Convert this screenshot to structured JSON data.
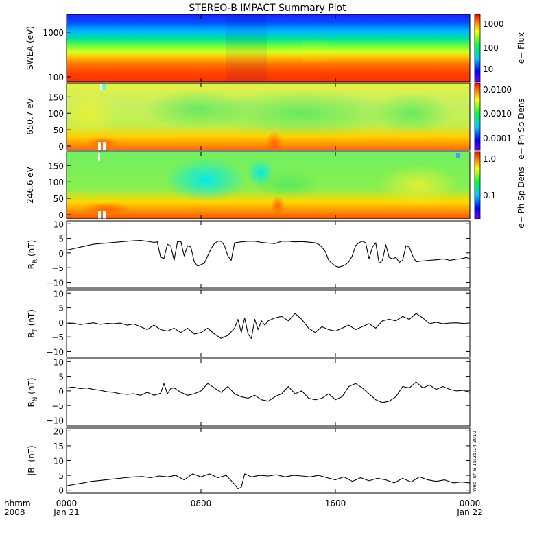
{
  "title": "STEREO-B IMPACT Summary Plot",
  "timestamp": "Wed Jun  9 15:25:14 2010",
  "chart_data": [
    {
      "type": "heatmap",
      "ylabel": "SWEA (eV)",
      "yscale": "log",
      "ylim": [
        100,
        2000
      ],
      "yticks": [
        "1000",
        "100"
      ],
      "colorbar": {
        "label": "e− Flux",
        "scale": "log",
        "ticks": [
          "1000",
          "100",
          "10"
        ],
        "colors": [
          "#7000ff",
          "#0000ff",
          "#00c8ff",
          "#00ff40",
          "#ffff00",
          "#ff8000",
          "#ff0000"
        ]
      }
    },
    {
      "type": "heatmap",
      "ylabel": "650.7 eV",
      "ylim": [
        0,
        180
      ],
      "yticks": [
        "150",
        "100",
        "50",
        "0"
      ],
      "colorbar": {
        "label": "e− Ph Sp Dens",
        "scale": "log",
        "ticks": [
          "0.0100",
          "0.0010",
          "0.0001"
        ],
        "colors": [
          "#7000ff",
          "#0000ff",
          "#00c8ff",
          "#00ff40",
          "#ffff00",
          "#ff8000",
          "#ff0000"
        ]
      }
    },
    {
      "type": "heatmap",
      "ylabel": "246.6 eV",
      "ylim": [
        0,
        180
      ],
      "yticks": [
        "150",
        "100",
        "50",
        "0"
      ],
      "colorbar": {
        "label": "e− Ph Sp Dens",
        "scale": "log",
        "ticks": [
          "1.0",
          "0.1"
        ],
        "colors": [
          "#7000ff",
          "#0000ff",
          "#00c8ff",
          "#00ff40",
          "#ffff00",
          "#ff8000",
          "#ff0000"
        ]
      }
    },
    {
      "type": "line",
      "ylabel_main": "B",
      "ylabel_sub": "R",
      "ylabel_unit": "(nT)",
      "ylim": [
        -12,
        11
      ],
      "yticks": [
        "10",
        "5",
        "0",
        "−5",
        "−10"
      ],
      "x": [
        0,
        0.4,
        0.8,
        1.2,
        1.6,
        2,
        2.4,
        2.8,
        3.2,
        3.6,
        4,
        4.4,
        4.8,
        5.2,
        5.4,
        5.6,
        5.8,
        6,
        6.2,
        6.4,
        6.6,
        6.8,
        7,
        7.2,
        7.4,
        7.6,
        7.8,
        8,
        8.2,
        8.4,
        8.6,
        8.8,
        9,
        9.2,
        9.4,
        9.6,
        9.8,
        10,
        10.4,
        10.8,
        11.2,
        11.6,
        12,
        12.4,
        12.8,
        13.2,
        13.6,
        14,
        14.4,
        14.8,
        15,
        15.2,
        15.4,
        15.6,
        15.8,
        16,
        16.2,
        16.4,
        16.6,
        16.8,
        17,
        17.2,
        17.4,
        17.6,
        17.8,
        18,
        18.2,
        18.4,
        18.6,
        18.8,
        19,
        19.2,
        19.4,
        19.6,
        19.8,
        20,
        20.2,
        20.4,
        20.6,
        20.8,
        21,
        21.2,
        21.4,
        21.6,
        21.8,
        22,
        22.2,
        22.4,
        22.6,
        22.8,
        23,
        23.2,
        23.4,
        23.6,
        23.8,
        24
      ],
      "y": [
        1,
        1.5,
        2,
        2.5,
        3,
        3.2,
        3.4,
        3.6,
        3.8,
        4,
        4.2,
        4.3,
        4,
        3.6,
        3.8,
        -1.5,
        -1.8,
        3,
        2.4,
        -2.5,
        3.8,
        4,
        -1,
        2.5,
        2,
        -3,
        -4.5,
        -4,
        -3.5,
        -1,
        1.5,
        3.2,
        4,
        4,
        2.5,
        -1,
        -2.5,
        3.5,
        3.8,
        4,
        4,
        3.6,
        3.4,
        3.2,
        4,
        4,
        3.8,
        3.9,
        3.7,
        3.5,
        3,
        2,
        0.5,
        -2.5,
        -3.5,
        -4.5,
        -4.8,
        -4.5,
        -4,
        -3,
        -1,
        2.5,
        3.5,
        4,
        3.5,
        -2,
        2,
        3.5,
        -3.5,
        -2.5,
        2.8,
        -1.5,
        -2,
        -1.5,
        -3.2,
        -2.5,
        2.5,
        2,
        -1,
        -3,
        -2.8,
        -2.7,
        -2.6,
        -2.5,
        -2.4,
        -2.3,
        -2.2,
        -2,
        -2.2,
        -2.5,
        -2.3,
        -2.1,
        -2,
        -1.8,
        -1.5,
        -2
      ]
    },
    {
      "type": "line",
      "ylabel_main": "B",
      "ylabel_sub": "T",
      "ylabel_unit": "(nT)",
      "ylim": [
        -12,
        11
      ],
      "yticks": [
        "10",
        "5",
        "0",
        "−5",
        "−10"
      ],
      "x": [
        0,
        0.4,
        0.8,
        1.2,
        1.6,
        2,
        2.4,
        2.8,
        3.2,
        3.6,
        4,
        4.4,
        4.8,
        5.2,
        5.6,
        6,
        6.4,
        6.8,
        7.2,
        7.6,
        8,
        8.4,
        8.8,
        9.2,
        9.6,
        10,
        10.2,
        10.4,
        10.6,
        10.8,
        11,
        11.2,
        11.4,
        11.6,
        11.8,
        12,
        12.4,
        12.8,
        13.2,
        13.6,
        14,
        14.4,
        14.8,
        15.2,
        15.6,
        16,
        16.4,
        16.8,
        17.2,
        17.6,
        18,
        18.4,
        18.8,
        19.2,
        19.6,
        20,
        20.4,
        20.8,
        21.2,
        21.6,
        22,
        22.4,
        22.8,
        23.2,
        23.6,
        24
      ],
      "y": [
        -0.5,
        -0.3,
        -0.8,
        -0.5,
        -0.2,
        -0.7,
        -0.4,
        -0.5,
        -0.3,
        -1,
        -0.6,
        -1.5,
        -2.5,
        -1,
        -2.5,
        -3,
        -2,
        -3.5,
        -2,
        -4,
        -3.5,
        -2,
        -4,
        -5.5,
        -4.5,
        -2,
        1,
        -3.5,
        1.5,
        -4,
        -5.5,
        1,
        -2.5,
        0.5,
        -1,
        0.5,
        1.5,
        2,
        0.5,
        3,
        1,
        -2,
        -3.5,
        -1.5,
        -2.5,
        -3,
        -2,
        -1,
        -2.5,
        -1.5,
        -0.5,
        -2,
        0.5,
        1,
        0.5,
        2,
        1,
        3,
        1.5,
        -0.5,
        0,
        -0.5,
        -0.3,
        -0.2,
        -0.4,
        -0.5
      ]
    },
    {
      "type": "line",
      "ylabel_main": "B",
      "ylabel_sub": "N",
      "ylabel_unit": "(nT)",
      "ylim": [
        -12,
        11
      ],
      "yticks": [
        "10",
        "5",
        "0",
        "−5",
        "−10"
      ],
      "x": [
        0,
        0.4,
        0.8,
        1.2,
        1.6,
        2,
        2.4,
        2.8,
        3.2,
        3.6,
        4,
        4.4,
        4.8,
        5.2,
        5.6,
        5.8,
        6,
        6.2,
        6.4,
        6.8,
        7.2,
        7.6,
        8,
        8.4,
        8.8,
        9.2,
        9.6,
        10,
        10.4,
        10.8,
        11.2,
        11.6,
        12,
        12.4,
        12.8,
        13.2,
        13.6,
        14,
        14.4,
        14.8,
        15.2,
        15.6,
        16,
        16.4,
        16.8,
        17.2,
        17.6,
        18,
        18.4,
        18.8,
        19.2,
        19.6,
        20,
        20.4,
        20.8,
        21.2,
        21.6,
        22,
        22.4,
        22.8,
        23.2,
        23.6,
        24
      ],
      "y": [
        1,
        1.3,
        0.8,
        1,
        0.5,
        0.2,
        -0.3,
        -0.5,
        -1,
        -1.2,
        -1,
        -1.5,
        -0.5,
        -1.5,
        -0.8,
        2.5,
        -1,
        0.8,
        1,
        -0.5,
        -1.5,
        -1,
        0,
        2.5,
        1,
        -0.5,
        1.5,
        -1,
        -2,
        -2.5,
        -1.5,
        -3,
        -3.5,
        -2,
        -1,
        1.5,
        -1,
        0,
        -2.5,
        -3,
        -2.5,
        -1,
        -3,
        -2,
        1.5,
        2.5,
        1,
        -1,
        -3,
        -4,
        -3.5,
        -2,
        1.5,
        1,
        3,
        1,
        2,
        0.5,
        1.5,
        0.5,
        0,
        0.2,
        -0.5
      ]
    },
    {
      "type": "line",
      "ylabel_main": "|B|",
      "ylabel_sub": "",
      "ylabel_unit": "(nT)",
      "ylim": [
        -1,
        21
      ],
      "yticks": [
        "20",
        "15",
        "10",
        "5",
        "0"
      ],
      "x": [
        0,
        0.5,
        1,
        1.5,
        2,
        2.5,
        3,
        3.5,
        4,
        4.5,
        5,
        5.5,
        6,
        6.5,
        7,
        7.5,
        8,
        8.5,
        9,
        9.5,
        10,
        10.2,
        10.4,
        10.6,
        11,
        11.5,
        12,
        12.5,
        13,
        13.5,
        14,
        14.5,
        15,
        15.5,
        16,
        16.5,
        17,
        17.5,
        18,
        18.5,
        19,
        19.5,
        20,
        20.5,
        21,
        21.5,
        22,
        22.5,
        23,
        23.5,
        24
      ],
      "y": [
        1.5,
        2,
        2.5,
        3,
        3.3,
        3.6,
        3.9,
        4.2,
        4.5,
        4.6,
        4.2,
        4.8,
        4.5,
        5,
        3.5,
        5.5,
        4.5,
        5.5,
        4.2,
        5,
        2,
        0.5,
        1,
        5.5,
        4.5,
        5,
        4.8,
        5.2,
        4.5,
        5,
        4.8,
        4.5,
        5,
        4.2,
        3.5,
        4.5,
        3,
        4.2,
        3.2,
        4,
        3.5,
        2.5,
        4,
        2.8,
        4.5,
        3.5,
        3,
        3.5,
        2.5,
        2.8,
        2.5
      ]
    }
  ],
  "x_axis": {
    "ticks": [
      "0000",
      "0800",
      "1600",
      "0000"
    ],
    "tick_hours": [
      0,
      8,
      16,
      24
    ],
    "dates": [
      "Jan 21",
      "Jan 22"
    ],
    "row_labels": [
      "hhmm",
      "2008"
    ]
  }
}
